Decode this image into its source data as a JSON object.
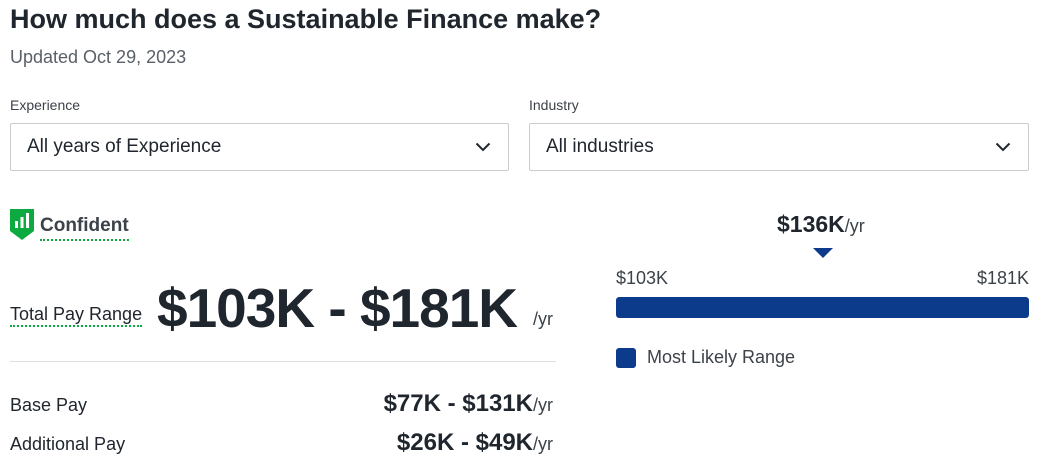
{
  "page": {
    "title": "How much does a Sustainable Finance make?",
    "updated": "Updated Oct 29, 2023"
  },
  "filters": {
    "experience": {
      "label": "Experience",
      "value": "All years of Experience",
      "icon": "chevron-down-icon"
    },
    "industry": {
      "label": "Industry",
      "value": "All industries",
      "icon": "chevron-down-icon"
    }
  },
  "confidence": {
    "label": "Confident",
    "icon": "signal-shield-icon",
    "color": "#0caa41"
  },
  "total_pay": {
    "label": "Total Pay Range",
    "value": "$103K - $181K",
    "unit": "/yr"
  },
  "base_pay": {
    "label": "Base Pay",
    "value": "$77K - $131K",
    "unit": "/yr"
  },
  "additional_pay": {
    "label": "Additional Pay",
    "value": "$26K - $49K",
    "unit": "/yr"
  },
  "range_chart": {
    "median": "$136K",
    "median_unit": "/yr",
    "low_label": "$103K",
    "high_label": "$181K",
    "low": 103,
    "high": 181,
    "most_likely_low": 103,
    "most_likely_high": 181,
    "median_value": 136,
    "legend": "Most Likely Range",
    "color": "#0d3b8c"
  }
}
